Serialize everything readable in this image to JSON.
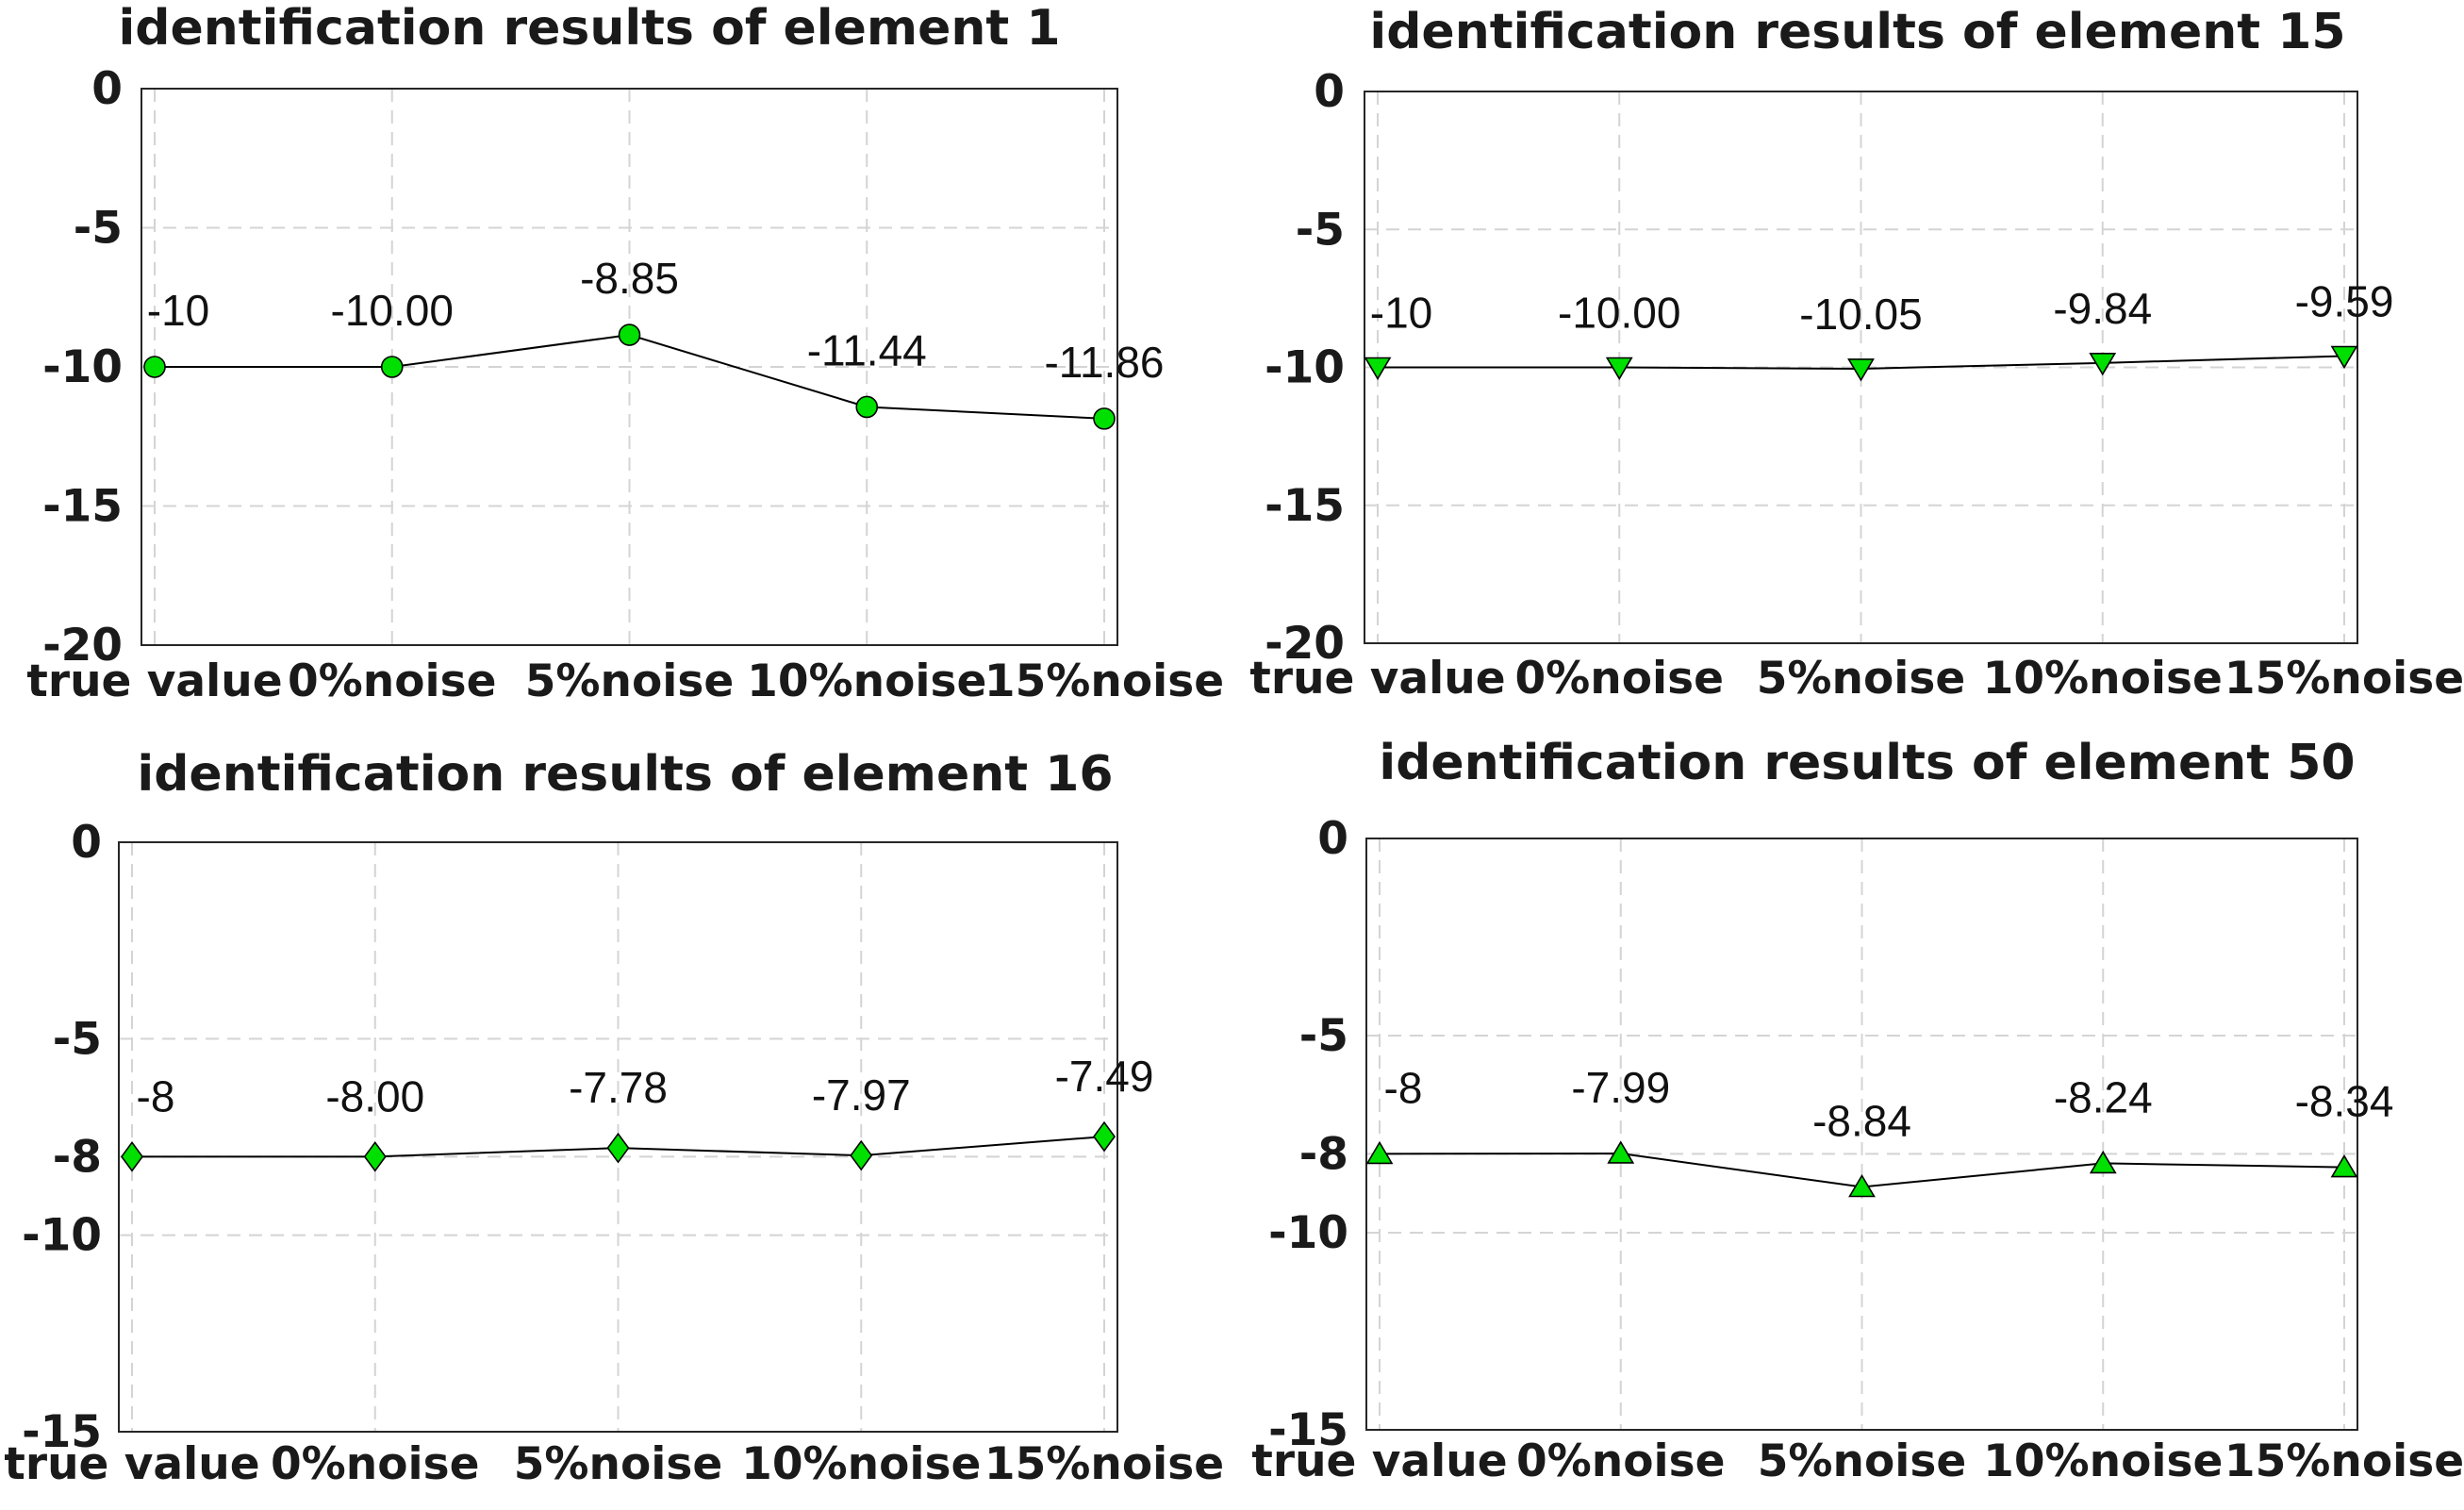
{
  "chart_data": [
    {
      "type": "line",
      "title": "identification results of element 1",
      "categories": [
        "true value",
        "0%noise",
        "5%noise",
        "10%noise",
        "15%noise"
      ],
      "values": [
        -10,
        -10.0,
        -8.85,
        -11.44,
        -11.86
      ],
      "data_labels": [
        "-10",
        "-10.00",
        "-8.85",
        "-11.44",
        "-11.86"
      ],
      "yticks": [
        0,
        -5,
        -10,
        -15,
        -20
      ],
      "ylim": [
        -20,
        0
      ],
      "marker": "circle",
      "marker_color": "#00e000",
      "grid": true
    },
    {
      "type": "line",
      "title": "identification results of element 15",
      "categories": [
        "true value",
        "0%noise",
        "5%noise",
        "10%noise",
        "15%noise"
      ],
      "values": [
        -10,
        -10.0,
        -10.05,
        -9.84,
        -9.59
      ],
      "data_labels": [
        "-10",
        "-10.00",
        "-10.05",
        "-9.84",
        "-9.59"
      ],
      "yticks": [
        0,
        -5,
        -10,
        -15,
        -20
      ],
      "ylim": [
        -20,
        0
      ],
      "marker": "triangle-down",
      "marker_color": "#00e000",
      "grid": true
    },
    {
      "type": "line",
      "title": "identification results of element 16",
      "categories": [
        "true value",
        "0%noise",
        "5%noise",
        "10%noise",
        "15%noise"
      ],
      "values": [
        -8,
        -8.0,
        -7.78,
        -7.97,
        -7.49
      ],
      "data_labels": [
        "-8",
        "-8.00",
        "-7.78",
        "-7.97",
        "-7.49"
      ],
      "yticks": [
        0,
        -5,
        -8,
        -10,
        -15
      ],
      "ylim": [
        -15,
        0
      ],
      "marker": "diamond",
      "marker_color": "#00e000",
      "grid": true
    },
    {
      "type": "line",
      "title": "identification results of element 50",
      "categories": [
        "true value",
        "0%noise",
        "5%noise",
        "10%noise",
        "15%noise"
      ],
      "values": [
        -8,
        -7.99,
        -8.84,
        -8.24,
        -8.34
      ],
      "data_labels": [
        "-8",
        "-7.99",
        "-8.84",
        "-8.24",
        "-8.34"
      ],
      "yticks": [
        0,
        -5,
        -8,
        -10,
        -15
      ],
      "ylim": [
        -15,
        0
      ],
      "marker": "triangle-up",
      "marker_color": "#00e000",
      "grid": true
    }
  ]
}
